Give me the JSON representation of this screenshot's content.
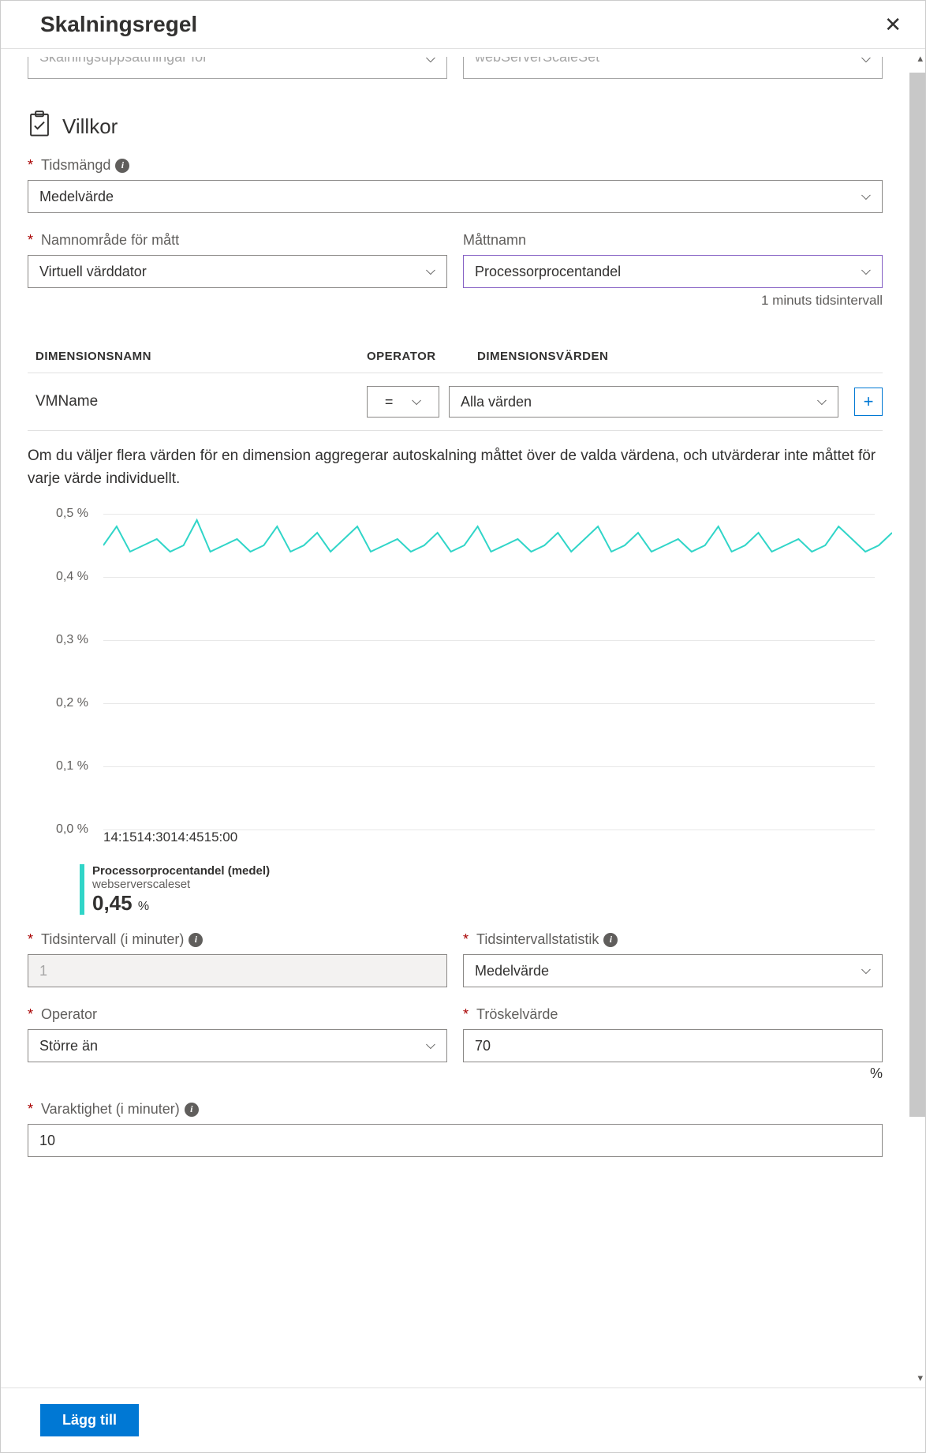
{
  "header": {
    "title": "Skalningsregel"
  },
  "top_selects": {
    "left": "Skalningsuppsättningar för",
    "right": "webServerScaleSet"
  },
  "section_title": "Villkor",
  "fields": {
    "time_aggregation": {
      "label": "Tidsmängd",
      "value": "Medelvärde"
    },
    "metric_namespace": {
      "label": "Namnområde för mått",
      "value": "Virtuell värddator"
    },
    "metric_name": {
      "label": "Måttnamn",
      "value": "Processorprocentandel",
      "helper": "1 minuts tidsintervall"
    },
    "time_interval": {
      "label": "Tidsintervall (i minuter)",
      "value": "1"
    },
    "time_interval_stat": {
      "label": "Tidsintervallstatistik",
      "value": "Medelvärde"
    },
    "operator_field": {
      "label": "Operator",
      "value": "Större än"
    },
    "threshold": {
      "label": "Tröskelvärde",
      "value": "70",
      "suffix": "%"
    },
    "duration": {
      "label": "Varaktighet (i minuter)",
      "value": "10"
    }
  },
  "dimensions": {
    "headers": {
      "name": "DIMENSIONSNAMN",
      "operator": "OPERATOR",
      "values": "DIMENSIONSVÄRDEN"
    },
    "row": {
      "name": "VMName",
      "operator": "=",
      "value": "Alla värden"
    },
    "helper": "Om du väljer flera värden för en dimension aggregerar autoskalning måttet över de valda värdena, och utvärderar inte måttet för varje värde individuellt."
  },
  "chart": {
    "type": "line",
    "y_ticks": [
      "0,5 %",
      "0,4 %",
      "0,3 %",
      "0,2 %",
      "0,1 %",
      "0,0 %"
    ],
    "y_positions_pct": [
      0,
      20,
      40,
      60,
      80,
      100
    ],
    "x_ticks": [
      "14:15",
      "14:30",
      "14:45",
      "15:00"
    ],
    "x_positions_pct": [
      24,
      47,
      70,
      94
    ],
    "series": {
      "color": "#30d5c8",
      "stroke_width": 2,
      "points_y_norm": [
        0.45,
        0.48,
        0.44,
        0.45,
        0.46,
        0.44,
        0.45,
        0.49,
        0.44,
        0.45,
        0.46,
        0.44,
        0.45,
        0.48,
        0.44,
        0.45,
        0.47,
        0.44,
        0.46,
        0.48,
        0.44,
        0.45,
        0.46,
        0.44,
        0.45,
        0.47,
        0.44,
        0.45,
        0.48,
        0.44,
        0.45,
        0.46,
        0.44,
        0.45,
        0.47,
        0.44,
        0.46,
        0.48,
        0.44,
        0.45,
        0.47,
        0.44,
        0.45,
        0.46,
        0.44,
        0.45,
        0.48,
        0.44,
        0.45,
        0.47,
        0.44,
        0.45,
        0.46,
        0.44,
        0.45,
        0.48,
        0.46,
        0.44,
        0.45,
        0.47
      ],
      "ylim": [
        0,
        0.5
      ]
    },
    "legend": {
      "title": "Processorprocentandel (medel)",
      "subtitle": "webserverscaleset",
      "value": "0,45",
      "unit": "%"
    },
    "background_color": "#ffffff",
    "grid_color": "#e8e8e8",
    "label_color": "#605e5c",
    "label_fontsize": 16
  },
  "footer": {
    "add_label": "Lägg till"
  }
}
